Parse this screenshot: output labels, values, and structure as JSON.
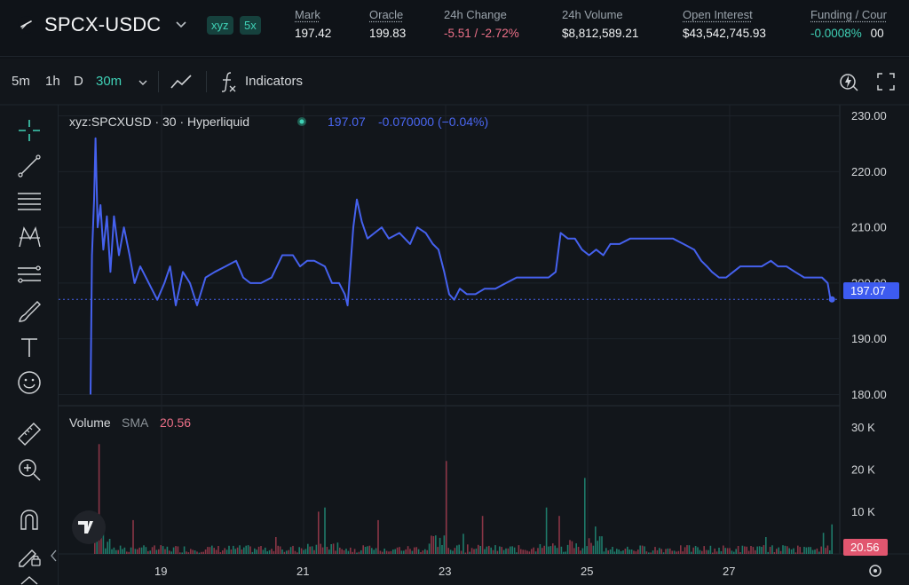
{
  "header": {
    "pair": "SPCX-USDC",
    "badges": [
      "xyz",
      "5x"
    ],
    "stats": [
      {
        "label": "Mark",
        "value": "197.42"
      },
      {
        "label": "Oracle",
        "value": "199.83"
      },
      {
        "label": "24h Change",
        "value": "-5.51 / -2.72%"
      },
      {
        "label": "24h Volume",
        "value": "$8,812,589.21"
      },
      {
        "label": "Open Interest",
        "value": "$43,542,745.93"
      },
      {
        "label": "Funding / Cour",
        "value": "-0.0008%",
        "extra": "00"
      }
    ]
  },
  "toolbar": {
    "timeframes": [
      "5m",
      "1h",
      "D",
      "30m"
    ],
    "active_timeframe": "30m",
    "indicators_label": "Indicators"
  },
  "legend": {
    "symbol": "xyz:SPCXUSD · 30 · Hyperliquid",
    "last": "197.07",
    "change": "-0.070000 (−0.04%)"
  },
  "volume_legend": {
    "label": "Volume",
    "sma_label": "SMA",
    "sma_value": "20.56"
  },
  "price_axis_ticks": [
    "230.00",
    "220.00",
    "210.00",
    "200.00",
    "190.00",
    "180.00"
  ],
  "volume_axis_ticks": [
    "30 K",
    "20 K",
    "10 K"
  ],
  "time_axis_ticks": [
    "19",
    "21",
    "23",
    "25",
    "27"
  ],
  "last_price_tag": "197.07",
  "volume_tag": "20.56",
  "colors": {
    "line": "#4561ee",
    "accent": "#3fd1b6",
    "negative": "#ed7088",
    "vol_up": "#1e7a6a",
    "vol_down": "#8a3646"
  },
  "chart_data": {
    "type": "line",
    "series": [
      {
        "values": [
          [
            18.0,
            180
          ],
          [
            18.02,
            205
          ],
          [
            18.05,
            215
          ],
          [
            18.07,
            226
          ],
          [
            18.1,
            210
          ],
          [
            18.14,
            214
          ],
          [
            18.18,
            206
          ],
          [
            18.23,
            212
          ],
          [
            18.28,
            202
          ],
          [
            18.33,
            212
          ],
          [
            18.4,
            205
          ],
          [
            18.47,
            210
          ],
          [
            18.55,
            205
          ],
          [
            18.62,
            200
          ],
          [
            18.7,
            203
          ],
          [
            18.78,
            201
          ],
          [
            18.86,
            199
          ],
          [
            18.94,
            197
          ],
          [
            19.04,
            200
          ],
          [
            19.12,
            203
          ],
          [
            19.2,
            196
          ],
          [
            19.3,
            202
          ],
          [
            19.4,
            200
          ],
          [
            19.5,
            196
          ],
          [
            19.62,
            201
          ],
          [
            19.75,
            202
          ],
          [
            19.9,
            203
          ],
          [
            20.05,
            204
          ],
          [
            20.15,
            201
          ],
          [
            20.25,
            200
          ],
          [
            20.4,
            200
          ],
          [
            20.55,
            201
          ],
          [
            20.7,
            205
          ],
          [
            20.85,
            205
          ],
          [
            20.95,
            203
          ],
          [
            21.05,
            204
          ],
          [
            21.15,
            204
          ],
          [
            21.3,
            203
          ],
          [
            21.4,
            200
          ],
          [
            21.5,
            200
          ],
          [
            21.58,
            198
          ],
          [
            21.62,
            196
          ],
          [
            21.7,
            210
          ],
          [
            21.75,
            215
          ],
          [
            21.82,
            211
          ],
          [
            21.9,
            208
          ],
          [
            22.0,
            209
          ],
          [
            22.1,
            210
          ],
          [
            22.2,
            208
          ],
          [
            22.35,
            209
          ],
          [
            22.5,
            207
          ],
          [
            22.6,
            210
          ],
          [
            22.72,
            209
          ],
          [
            22.82,
            207
          ],
          [
            22.9,
            206
          ],
          [
            22.98,
            202
          ],
          [
            23.05,
            198
          ],
          [
            23.12,
            197
          ],
          [
            23.2,
            199
          ],
          [
            23.3,
            198
          ],
          [
            23.42,
            198
          ],
          [
            23.55,
            199
          ],
          [
            23.7,
            199
          ],
          [
            23.85,
            200
          ],
          [
            24.0,
            201
          ],
          [
            24.15,
            201
          ],
          [
            24.3,
            201
          ],
          [
            24.45,
            201
          ],
          [
            24.55,
            202
          ],
          [
            24.62,
            209
          ],
          [
            24.72,
            208
          ],
          [
            24.82,
            208
          ],
          [
            24.92,
            206
          ],
          [
            25.02,
            205
          ],
          [
            25.12,
            206
          ],
          [
            25.22,
            205
          ],
          [
            25.32,
            207
          ],
          [
            25.45,
            207
          ],
          [
            25.6,
            208
          ],
          [
            25.75,
            208
          ],
          [
            25.9,
            208
          ],
          [
            26.05,
            208
          ],
          [
            26.2,
            208
          ],
          [
            26.35,
            207
          ],
          [
            26.5,
            206
          ],
          [
            26.6,
            204
          ],
          [
            26.68,
            203
          ],
          [
            26.75,
            202
          ],
          [
            26.85,
            201
          ],
          [
            26.95,
            201
          ],
          [
            27.05,
            202
          ],
          [
            27.15,
            203
          ],
          [
            27.3,
            203
          ],
          [
            27.45,
            203
          ],
          [
            27.58,
            204
          ],
          [
            27.68,
            203
          ],
          [
            27.8,
            203
          ],
          [
            27.92,
            202
          ],
          [
            28.05,
            201
          ],
          [
            28.15,
            201
          ],
          [
            28.3,
            201
          ],
          [
            28.38,
            200
          ],
          [
            28.42,
            197
          ],
          [
            28.44,
            197.07
          ]
        ]
      }
    ],
    "volume": {
      "sma": 20.56,
      "spikes": [
        [
          18.02,
          30000
        ],
        [
          18.1,
          26000
        ],
        [
          18.6,
          8000
        ],
        [
          20.6,
          4000
        ],
        [
          21.2,
          10000
        ],
        [
          21.3,
          11000
        ],
        [
          22.05,
          8000
        ],
        [
          23.0,
          22000
        ],
        [
          23.5,
          9000
        ],
        [
          24.4,
          11000
        ],
        [
          24.6,
          9000
        ],
        [
          24.95,
          18000
        ],
        [
          25.1,
          6500
        ],
        [
          27.5,
          4000
        ],
        [
          28.3,
          5000
        ],
        [
          28.42,
          7000
        ]
      ]
    },
    "ylim": [
      178,
      232
    ],
    "xlim": [
      17.55,
      28.55
    ],
    "volume_ylim": [
      0,
      33000
    ],
    "grid": true
  }
}
